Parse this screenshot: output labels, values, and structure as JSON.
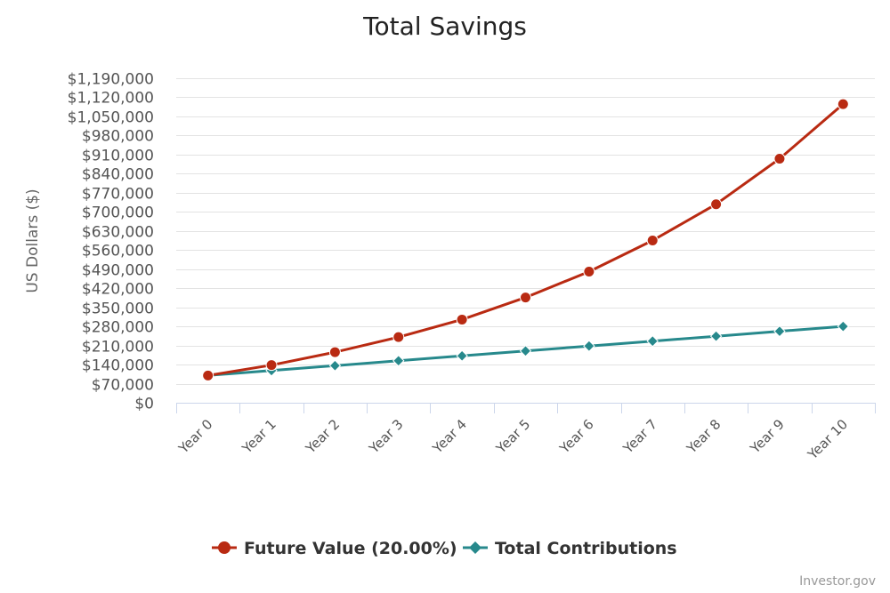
{
  "chart_data": {
    "type": "line",
    "title": "Total Savings",
    "xlabel": "",
    "ylabel": "US Dollars ($)",
    "categories": [
      "Year 0",
      "Year 1",
      "Year 2",
      "Year 3",
      "Year 4",
      "Year 5",
      "Year 6",
      "Year 7",
      "Year 8",
      "Year 9",
      "Year 10"
    ],
    "ylim": [
      0,
      1190000
    ],
    "yticks": [
      0,
      70000,
      140000,
      210000,
      280000,
      350000,
      420000,
      490000,
      560000,
      630000,
      700000,
      770000,
      840000,
      910000,
      980000,
      1050000,
      1120000,
      1190000
    ],
    "ytick_labels": [
      "$0",
      "$70,000",
      "$140,000",
      "$210,000",
      "$280,000",
      "$350,000",
      "$420,000",
      "$490,000",
      "$560,000",
      "$630,000",
      "$700,000",
      "$770,000",
      "$840,000",
      "$910,000",
      "$980,000",
      "$1,050,000",
      "$1,120,000",
      "$1,190,000"
    ],
    "grid": true,
    "legend_position": "bottom-center",
    "series": [
      {
        "name": "Future Value (20.00%)",
        "color": "#b92a12",
        "marker": "circle",
        "values": [
          100000,
          138000,
          185600,
          240700,
          305000,
          386000,
          481000,
          595000,
          728000,
          895000,
          1095000
        ]
      },
      {
        "name": "Total Contributions",
        "color": "#27898c",
        "marker": "diamond",
        "values": [
          100000,
          118000,
          136000,
          154000,
          172000,
          190000,
          208000,
          226000,
          244000,
          262000,
          280000
        ]
      }
    ]
  },
  "credits": "Investor.gov"
}
